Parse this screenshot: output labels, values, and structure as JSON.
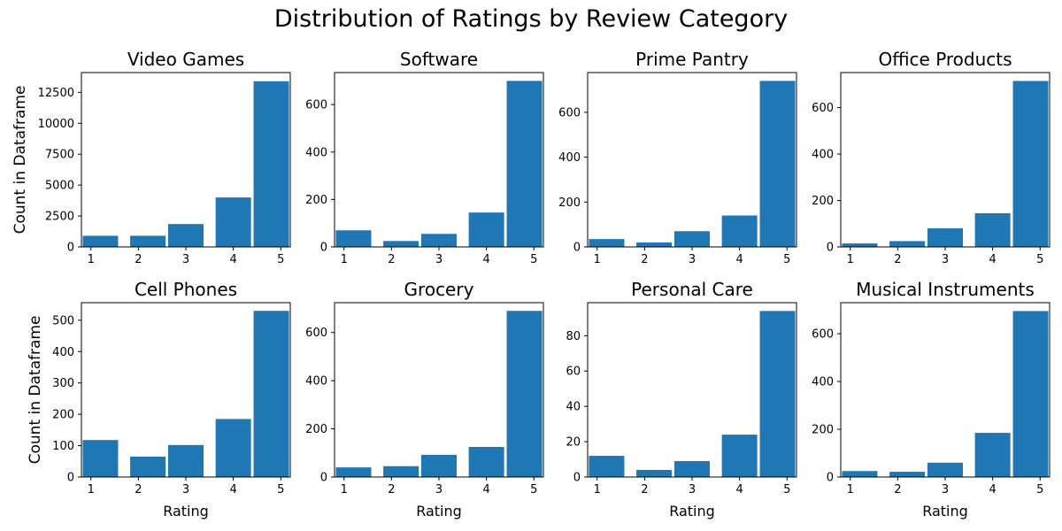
{
  "figure": {
    "title": "Distribution of Ratings by Review Category"
  },
  "chart_data": [
    {
      "type": "bar",
      "title": "Video Games",
      "xlabel": "",
      "ylabel": "Count in Dataframe",
      "categories": [
        1,
        2,
        3,
        4,
        5
      ],
      "values": [
        900,
        900,
        1850,
        4000,
        13400
      ],
      "ylim": [
        0,
        14100
      ],
      "xlim": [
        0.8,
        5.2
      ],
      "xticks": [
        1,
        2,
        3,
        4,
        5
      ],
      "yticks": [
        0,
        2500,
        5000,
        7500,
        10000,
        12500
      ],
      "ytick_labels": [
        "0",
        "2500",
        "5000",
        "7500",
        "10000",
        "12500"
      ]
    },
    {
      "type": "bar",
      "title": "Software",
      "xlabel": "",
      "ylabel": "",
      "categories": [
        1,
        2,
        3,
        4,
        5
      ],
      "values": [
        70,
        25,
        55,
        145,
        700
      ],
      "ylim": [
        0,
        735
      ],
      "xlim": [
        0.8,
        5.2
      ],
      "xticks": [
        1,
        2,
        3,
        4,
        5
      ],
      "yticks": [
        0,
        200,
        400,
        600
      ],
      "ytick_labels": [
        "0",
        "200",
        "400",
        "600"
      ]
    },
    {
      "type": "bar",
      "title": "Prime Pantry",
      "xlabel": "",
      "ylabel": "",
      "categories": [
        1,
        2,
        3,
        4,
        5
      ],
      "values": [
        35,
        20,
        70,
        140,
        740
      ],
      "ylim": [
        0,
        777
      ],
      "xlim": [
        0.8,
        5.2
      ],
      "xticks": [
        1,
        2,
        3,
        4,
        5
      ],
      "yticks": [
        0,
        200,
        400,
        600
      ],
      "ytick_labels": [
        "0",
        "200",
        "400",
        "600"
      ]
    },
    {
      "type": "bar",
      "title": "Office Products",
      "xlabel": "",
      "ylabel": "",
      "categories": [
        1,
        2,
        3,
        4,
        5
      ],
      "values": [
        15,
        25,
        80,
        145,
        715
      ],
      "ylim": [
        0,
        751
      ],
      "xlim": [
        0.8,
        5.2
      ],
      "xticks": [
        1,
        2,
        3,
        4,
        5
      ],
      "yticks": [
        0,
        200,
        400,
        600
      ],
      "ytick_labels": [
        "0",
        "200",
        "400",
        "600"
      ]
    },
    {
      "type": "bar",
      "title": "Cell Phones",
      "xlabel": "Rating",
      "ylabel": "Count in Dataframe",
      "categories": [
        1,
        2,
        3,
        4,
        5
      ],
      "values": [
        118,
        65,
        102,
        185,
        530
      ],
      "ylim": [
        0,
        556
      ],
      "xlim": [
        0.8,
        5.2
      ],
      "xticks": [
        1,
        2,
        3,
        4,
        5
      ],
      "yticks": [
        0,
        100,
        200,
        300,
        400,
        500
      ],
      "ytick_labels": [
        "0",
        "100",
        "200",
        "300",
        "400",
        "500"
      ]
    },
    {
      "type": "bar",
      "title": "Grocery",
      "xlabel": "Rating",
      "ylabel": "",
      "categories": [
        1,
        2,
        3,
        4,
        5
      ],
      "values": [
        40,
        45,
        92,
        125,
        690
      ],
      "ylim": [
        0,
        724
      ],
      "xlim": [
        0.8,
        5.2
      ],
      "xticks": [
        1,
        2,
        3,
        4,
        5
      ],
      "yticks": [
        0,
        200,
        400,
        600
      ],
      "ytick_labels": [
        "0",
        "200",
        "400",
        "600"
      ]
    },
    {
      "type": "bar",
      "title": "Personal Care",
      "xlabel": "Rating",
      "ylabel": "",
      "categories": [
        1,
        2,
        3,
        4,
        5
      ],
      "values": [
        12,
        4,
        9,
        24,
        94
      ],
      "ylim": [
        0,
        98.7
      ],
      "xlim": [
        0.8,
        5.2
      ],
      "xticks": [
        1,
        2,
        3,
        4,
        5
      ],
      "yticks": [
        0,
        20,
        40,
        60,
        80
      ],
      "ytick_labels": [
        "0",
        "20",
        "40",
        "60",
        "80"
      ]
    },
    {
      "type": "bar",
      "title": "Musical Instruments",
      "xlabel": "Rating",
      "ylabel": "",
      "categories": [
        1,
        2,
        3,
        4,
        5
      ],
      "values": [
        25,
        22,
        60,
        185,
        695
      ],
      "ylim": [
        0,
        730
      ],
      "xlim": [
        0.8,
        5.2
      ],
      "xticks": [
        1,
        2,
        3,
        4,
        5
      ],
      "yticks": [
        0,
        200,
        400,
        600
      ],
      "ytick_labels": [
        "0",
        "200",
        "400",
        "600"
      ]
    }
  ],
  "colors": {
    "bar": "#1f77b4",
    "axis": "#000000",
    "background": "#ffffff"
  }
}
